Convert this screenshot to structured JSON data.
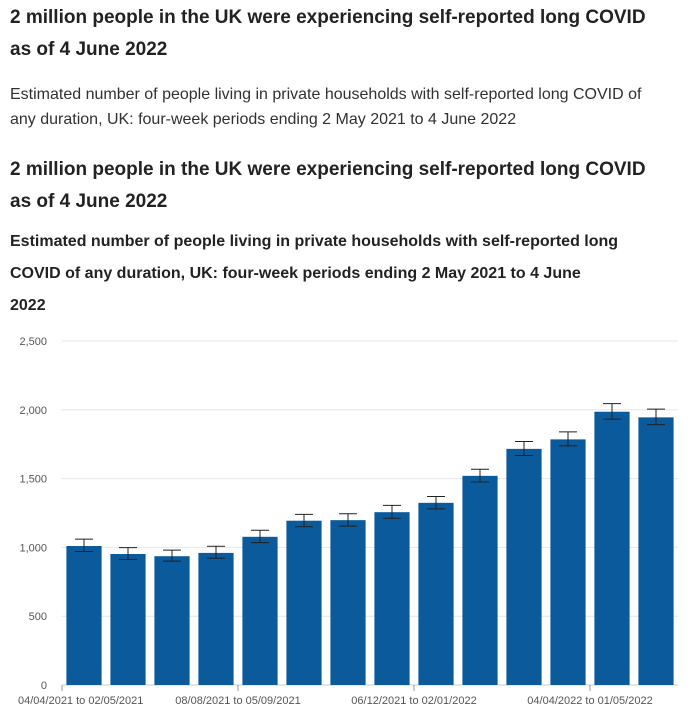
{
  "headline_1": "2 million people in the UK were experiencing self-reported long COVID as of 4 June 2022",
  "subtitle_1": "Estimated number of people living in private households with self-reported long COVID of any duration, UK: four-week periods ending 2 May 2021 to 4 June 2022",
  "headline_2": "2 million people in the UK were experiencing self-reported long COVID as of 4 June 2022",
  "chart_data": {
    "type": "bar",
    "title": "Estimated number of people living in private households with self-reported long COVID of any duration, UK: four-week periods ending 2 May 2021 to 4 June 2022",
    "ylim": [
      0,
      2500
    ],
    "yticks": [
      0,
      500,
      1000,
      1500,
      2000,
      2500
    ],
    "ytick_labels": [
      "0",
      "500",
      "1,000",
      "1,500",
      "2,000",
      "2,500"
    ],
    "grid": true,
    "categories": [
      "04/04/2021 to 02/05/2021",
      "",
      "",
      "",
      "08/08/2021 to 05/09/2021",
      "",
      "",
      "",
      "06/12/2021 to 02/01/2022",
      "",
      "",
      "",
      "04/04/2022 to 01/05/2022",
      ""
    ],
    "values": [
      1010,
      952,
      936,
      960,
      1077,
      1194,
      1198,
      1256,
      1324,
      1520,
      1716,
      1785,
      1986,
      1945
    ],
    "error_low": [
      970,
      912,
      900,
      922,
      1035,
      1150,
      1155,
      1212,
      1280,
      1475,
      1668,
      1738,
      1932,
      1892
    ],
    "error_high": [
      1060,
      998,
      980,
      1008,
      1125,
      1240,
      1245,
      1305,
      1370,
      1568,
      1770,
      1840,
      2045,
      2005
    ],
    "bar_color": "#0a5a9c",
    "error_color": "#222222"
  }
}
